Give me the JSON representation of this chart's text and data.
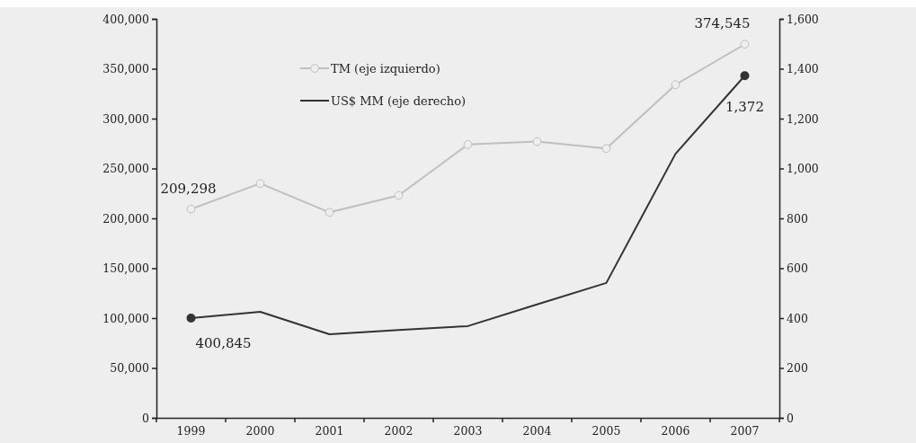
{
  "chart_data": {
    "type": "line",
    "categories": [
      "1999",
      "2000",
      "2001",
      "2002",
      "2003",
      "2004",
      "2005",
      "2006",
      "2007"
    ],
    "series": [
      {
        "name": "TM (eje izquierdo)",
        "color": "#bfbfbf",
        "marker": "circle",
        "values": [
          209298,
          235000,
          206000,
          223000,
          274000,
          277000,
          270000,
          334000,
          374545
        ],
        "value_labels": [
          "209,298",
          null,
          null,
          null,
          null,
          null,
          null,
          null,
          "374,545"
        ]
      },
      {
        "name": "US$ MM (eje derecho)",
        "color": "#333333",
        "axis": "y2",
        "marker": "none",
        "values": [
          400,
          425,
          335,
          352,
          368,
          455,
          541,
          1059,
          1372
        ],
        "value_labels": [
          null,
          null,
          null,
          null,
          null,
          null,
          null,
          null,
          "1,372"
        ]
      }
    ],
    "ylim": [
      0,
      400000
    ],
    "yticks": [
      {
        "value": 0,
        "label": "0"
      },
      {
        "value": 50000,
        "label": "50,000"
      },
      {
        "value": 100000,
        "label": "100,000"
      },
      {
        "value": 150000,
        "label": "150,000"
      },
      {
        "value": 200000,
        "label": "200,000"
      },
      {
        "value": 250000,
        "label": "250,000"
      },
      {
        "value": 300000,
        "label": "300,000"
      },
      {
        "value": 350000,
        "label": "350,000"
      },
      {
        "value": 400000,
        "label": "400,000"
      }
    ],
    "y2lim": [
      0,
      1600
    ],
    "y2ticks": [
      0,
      200,
      400,
      600,
      800,
      {
        "value": 1000,
        "label": "1,000"
      },
      {
        "value": 1200,
        "label": "1,200"
      },
      {
        "value": 1400,
        "label": "1,400"
      },
      {
        "value": 1600,
        "label": "1,600"
      }
    ],
    "annotations": [
      "400,845"
    ],
    "grid": false,
    "legend": "top left"
  }
}
